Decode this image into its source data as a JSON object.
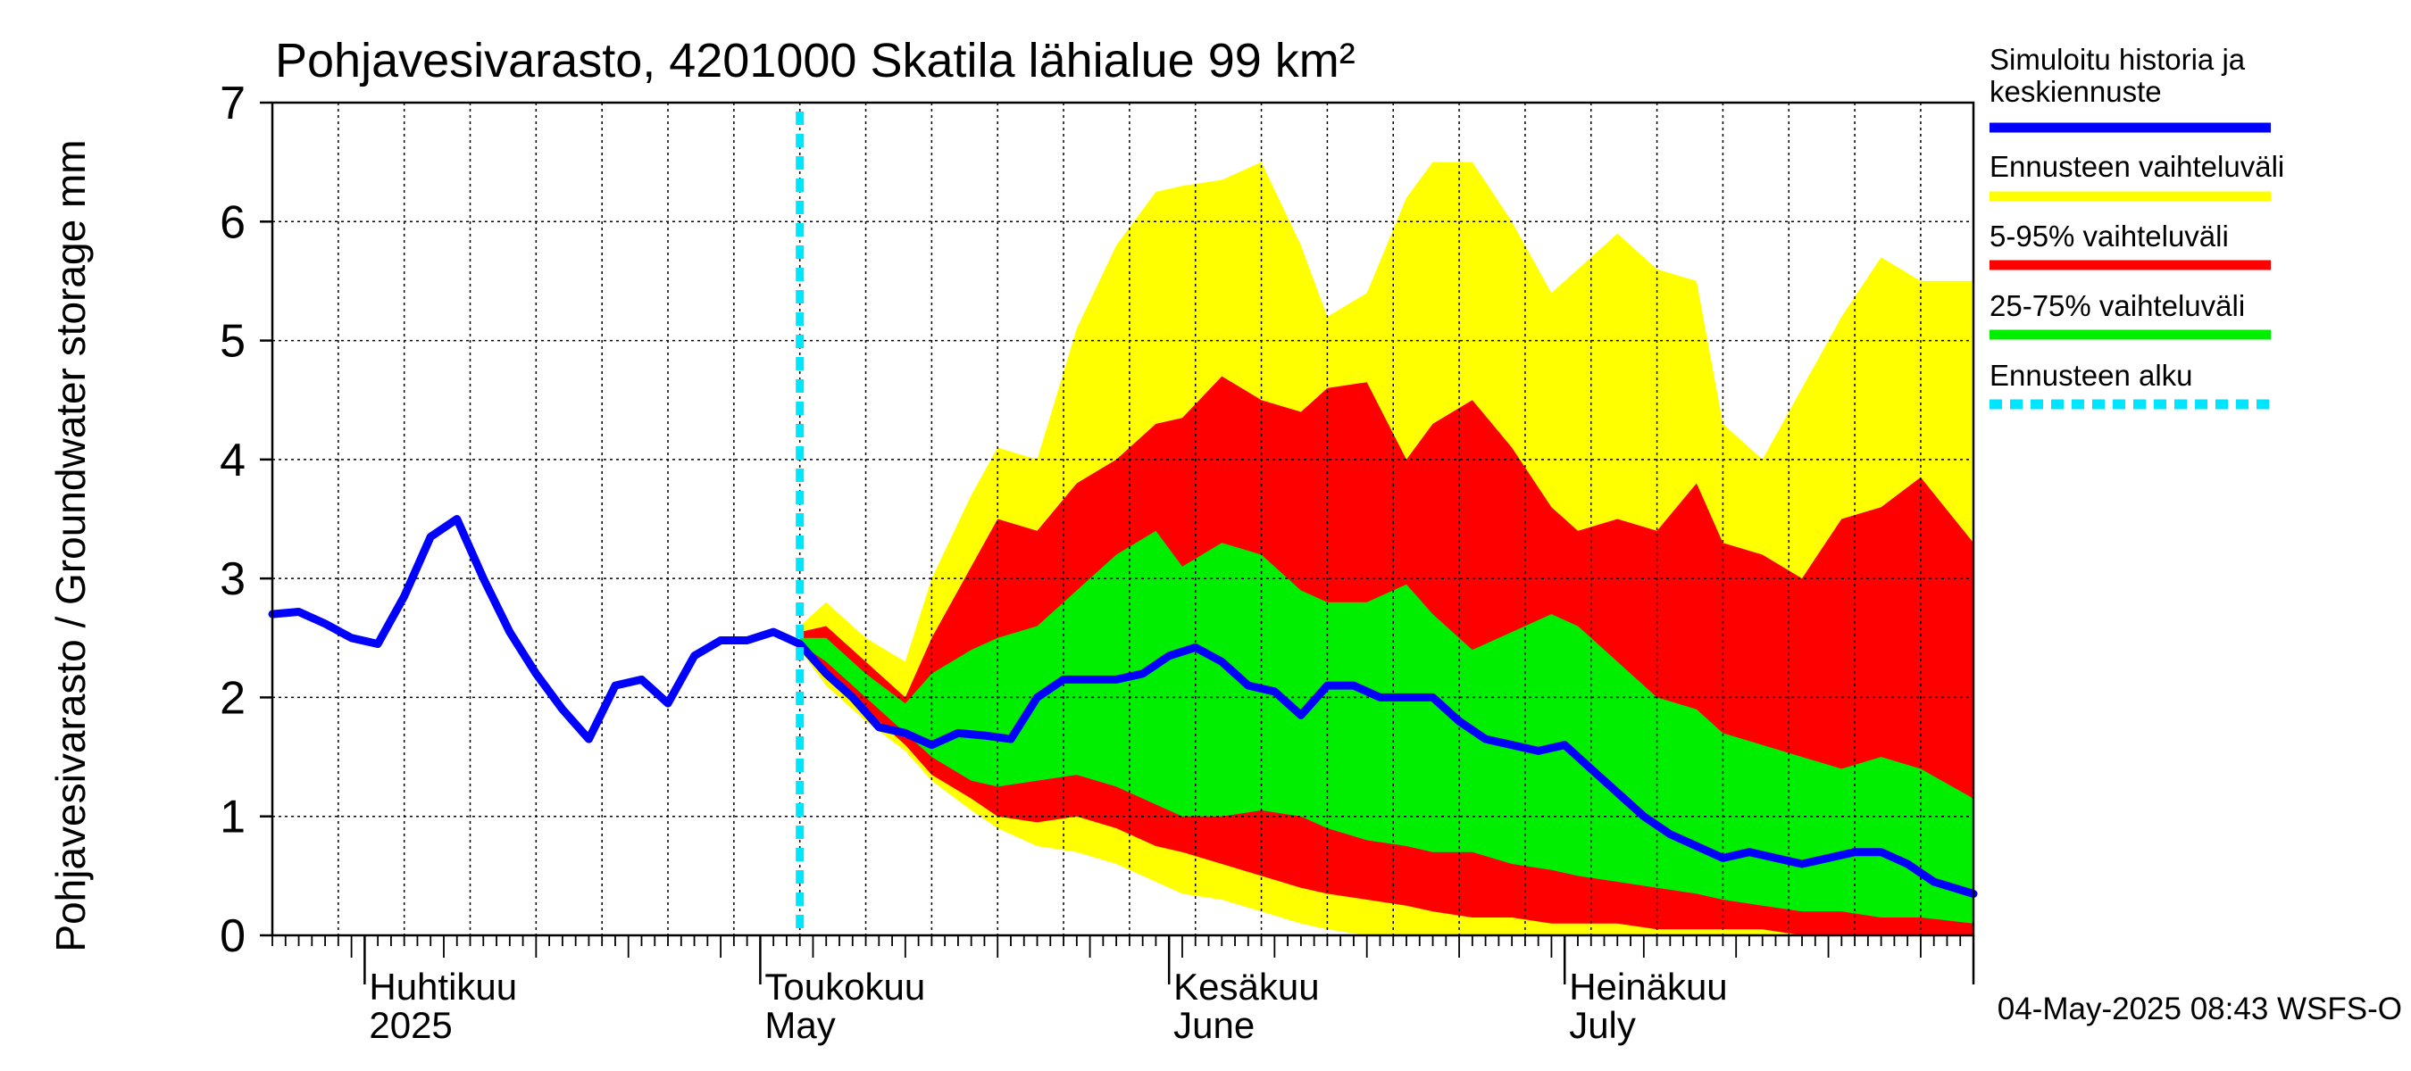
{
  "chart_data": {
    "type": "area",
    "title": "Pohjavesivarasto, 4201000 Skatila lähialue 99 km²",
    "ylabel": "Pohjavesivarasto / Groundwater storage   mm",
    "ylim": [
      0,
      7
    ],
    "yticks": [
      "0",
      "1",
      "2",
      "3",
      "4",
      "5",
      "6",
      "7"
    ],
    "xlim": [
      "2025-03-25",
      "2025-08-01"
    ],
    "month_labels": [
      {
        "fi": "Huhtikuu",
        "en": "2025",
        "date": "2025-04-01"
      },
      {
        "fi": "Toukokuu",
        "en": "May",
        "date": "2025-05-01"
      },
      {
        "fi": "Kesäkuu",
        "en": "June",
        "date": "2025-06-01"
      },
      {
        "fi": "Heinäkuu",
        "en": "July",
        "date": "2025-07-01"
      }
    ],
    "forecast_start": "2025-05-04",
    "legend": [
      {
        "label": "Simuloitu historia ja keskiennuste",
        "color": "#0000ff",
        "style": "solid"
      },
      {
        "label": "Ennusteen vaihteluväli",
        "color": "#ffff00",
        "style": "solid"
      },
      {
        "label": "5-95% vaihteluväli",
        "color": "#ff0000",
        "style": "solid"
      },
      {
        "label": "25-75% vaihteluväli",
        "color": "#00ee00",
        "style": "solid"
      },
      {
        "label": "Ennusteen alku",
        "color": "#00e5ff",
        "style": "dashed"
      }
    ],
    "legend_position": "right",
    "grid": true,
    "footer": "04-May-2025 08:43 WSFS-O",
    "band_dates": [
      "2025-05-04",
      "2025-05-06",
      "2025-05-09",
      "2025-05-12",
      "2025-05-14",
      "2025-05-17",
      "2025-05-19",
      "2025-05-22",
      "2025-05-25",
      "2025-05-28",
      "2025-05-31",
      "2025-06-02",
      "2025-06-05",
      "2025-06-08",
      "2025-06-11",
      "2025-06-13",
      "2025-06-16",
      "2025-06-19",
      "2025-06-21",
      "2025-06-24",
      "2025-06-27",
      "2025-06-30",
      "2025-07-02",
      "2025-07-05",
      "2025-07-08",
      "2025-07-11",
      "2025-07-13",
      "2025-07-16",
      "2025-07-19",
      "2025-07-22",
      "2025-07-25",
      "2025-07-28",
      "2025-08-01"
    ],
    "series": [
      {
        "name": "Ennusteen vaihteluväli",
        "color": "#ffff00",
        "upper": [
          2.6,
          2.8,
          2.5,
          2.3,
          3.0,
          3.7,
          4.1,
          4.0,
          5.1,
          5.8,
          6.25,
          6.3,
          6.35,
          6.5,
          5.8,
          5.2,
          5.4,
          6.2,
          6.5,
          6.5,
          6.0,
          5.4,
          5.6,
          5.9,
          5.6,
          5.5,
          4.3,
          4.0,
          4.6,
          5.2,
          5.7,
          5.5,
          5.5
        ],
        "lower": [
          2.4,
          2.1,
          1.8,
          1.55,
          1.3,
          1.05,
          0.9,
          0.75,
          0.7,
          0.6,
          0.45,
          0.35,
          0.3,
          0.2,
          0.1,
          0.05,
          0.0,
          0.0,
          0.0,
          0.0,
          0.0,
          0.0,
          0.0,
          0.0,
          0.0,
          0.0,
          0.0,
          0.0,
          0.0,
          0.0,
          0.0,
          0.0,
          0.0
        ]
      },
      {
        "name": "5-95% vaihteluväli",
        "color": "#ff0000",
        "upper": [
          2.55,
          2.6,
          2.3,
          2.0,
          2.5,
          3.1,
          3.5,
          3.4,
          3.8,
          4.0,
          4.3,
          4.35,
          4.7,
          4.5,
          4.4,
          4.6,
          4.65,
          4.0,
          4.3,
          4.5,
          4.1,
          3.6,
          3.4,
          3.5,
          3.4,
          3.8,
          3.3,
          3.2,
          3.0,
          3.5,
          3.6,
          3.85,
          3.3
        ],
        "lower": [
          2.45,
          2.2,
          1.9,
          1.6,
          1.35,
          1.15,
          1.0,
          0.95,
          1.0,
          0.9,
          0.75,
          0.7,
          0.6,
          0.5,
          0.4,
          0.35,
          0.3,
          0.25,
          0.2,
          0.15,
          0.15,
          0.1,
          0.1,
          0.1,
          0.05,
          0.05,
          0.05,
          0.05,
          0.0,
          0.0,
          0.0,
          0.0,
          0.0
        ]
      },
      {
        "name": "25-75% vaihteluväli",
        "color": "#00ee00",
        "upper": [
          2.5,
          2.5,
          2.2,
          1.95,
          2.2,
          2.4,
          2.5,
          2.6,
          2.9,
          3.2,
          3.4,
          3.1,
          3.3,
          3.2,
          2.9,
          2.8,
          2.8,
          2.95,
          2.7,
          2.4,
          2.55,
          2.7,
          2.6,
          2.3,
          2.0,
          1.9,
          1.7,
          1.6,
          1.5,
          1.4,
          1.5,
          1.4,
          1.15
        ],
        "lower": [
          2.45,
          2.3,
          2.0,
          1.7,
          1.5,
          1.3,
          1.25,
          1.3,
          1.35,
          1.25,
          1.1,
          1.0,
          1.0,
          1.05,
          1.0,
          0.9,
          0.8,
          0.75,
          0.7,
          0.7,
          0.6,
          0.55,
          0.5,
          0.45,
          0.4,
          0.35,
          0.3,
          0.25,
          0.2,
          0.2,
          0.15,
          0.15,
          0.1
        ]
      },
      {
        "name": "Simuloitu historia ja keskiennuste",
        "color": "#0000ff",
        "x": [
          "2025-03-25",
          "2025-03-27",
          "2025-03-29",
          "2025-03-31",
          "2025-04-02",
          "2025-04-04",
          "2025-04-06",
          "2025-04-08",
          "2025-04-10",
          "2025-04-12",
          "2025-04-14",
          "2025-04-16",
          "2025-04-18",
          "2025-04-20",
          "2025-04-22",
          "2025-04-24",
          "2025-04-26",
          "2025-04-28",
          "2025-04-30",
          "2025-05-02",
          "2025-05-04",
          "2025-05-06",
          "2025-05-08",
          "2025-05-10",
          "2025-05-12",
          "2025-05-14",
          "2025-05-16",
          "2025-05-18",
          "2025-05-20",
          "2025-05-22",
          "2025-05-24",
          "2025-05-26",
          "2025-05-28",
          "2025-05-30",
          "2025-06-01",
          "2025-06-03",
          "2025-06-05",
          "2025-06-07",
          "2025-06-09",
          "2025-06-11",
          "2025-06-13",
          "2025-06-15",
          "2025-06-17",
          "2025-06-19",
          "2025-06-21",
          "2025-06-23",
          "2025-06-25",
          "2025-06-27",
          "2025-06-29",
          "2025-07-01",
          "2025-07-03",
          "2025-07-05",
          "2025-07-07",
          "2025-07-09",
          "2025-07-11",
          "2025-07-13",
          "2025-07-15",
          "2025-07-17",
          "2025-07-19",
          "2025-07-21",
          "2025-07-23",
          "2025-07-25",
          "2025-07-27",
          "2025-07-29",
          "2025-08-01"
        ],
        "values": [
          2.7,
          2.72,
          2.62,
          2.5,
          2.45,
          2.85,
          3.35,
          3.5,
          3.0,
          2.55,
          2.2,
          1.9,
          1.65,
          2.1,
          2.15,
          1.95,
          2.35,
          2.48,
          2.48,
          2.55,
          2.45,
          2.2,
          2.0,
          1.75,
          1.7,
          1.6,
          1.7,
          1.68,
          1.65,
          2.0,
          2.15,
          2.15,
          2.15,
          2.2,
          2.35,
          2.42,
          2.3,
          2.1,
          2.05,
          1.85,
          2.1,
          2.1,
          2.0,
          2.0,
          2.0,
          1.8,
          1.65,
          1.6,
          1.55,
          1.6,
          1.4,
          1.2,
          1.0,
          0.85,
          0.75,
          0.65,
          0.7,
          0.65,
          0.6,
          0.65,
          0.7,
          0.7,
          0.6,
          0.45,
          0.35
        ]
      }
    ]
  }
}
